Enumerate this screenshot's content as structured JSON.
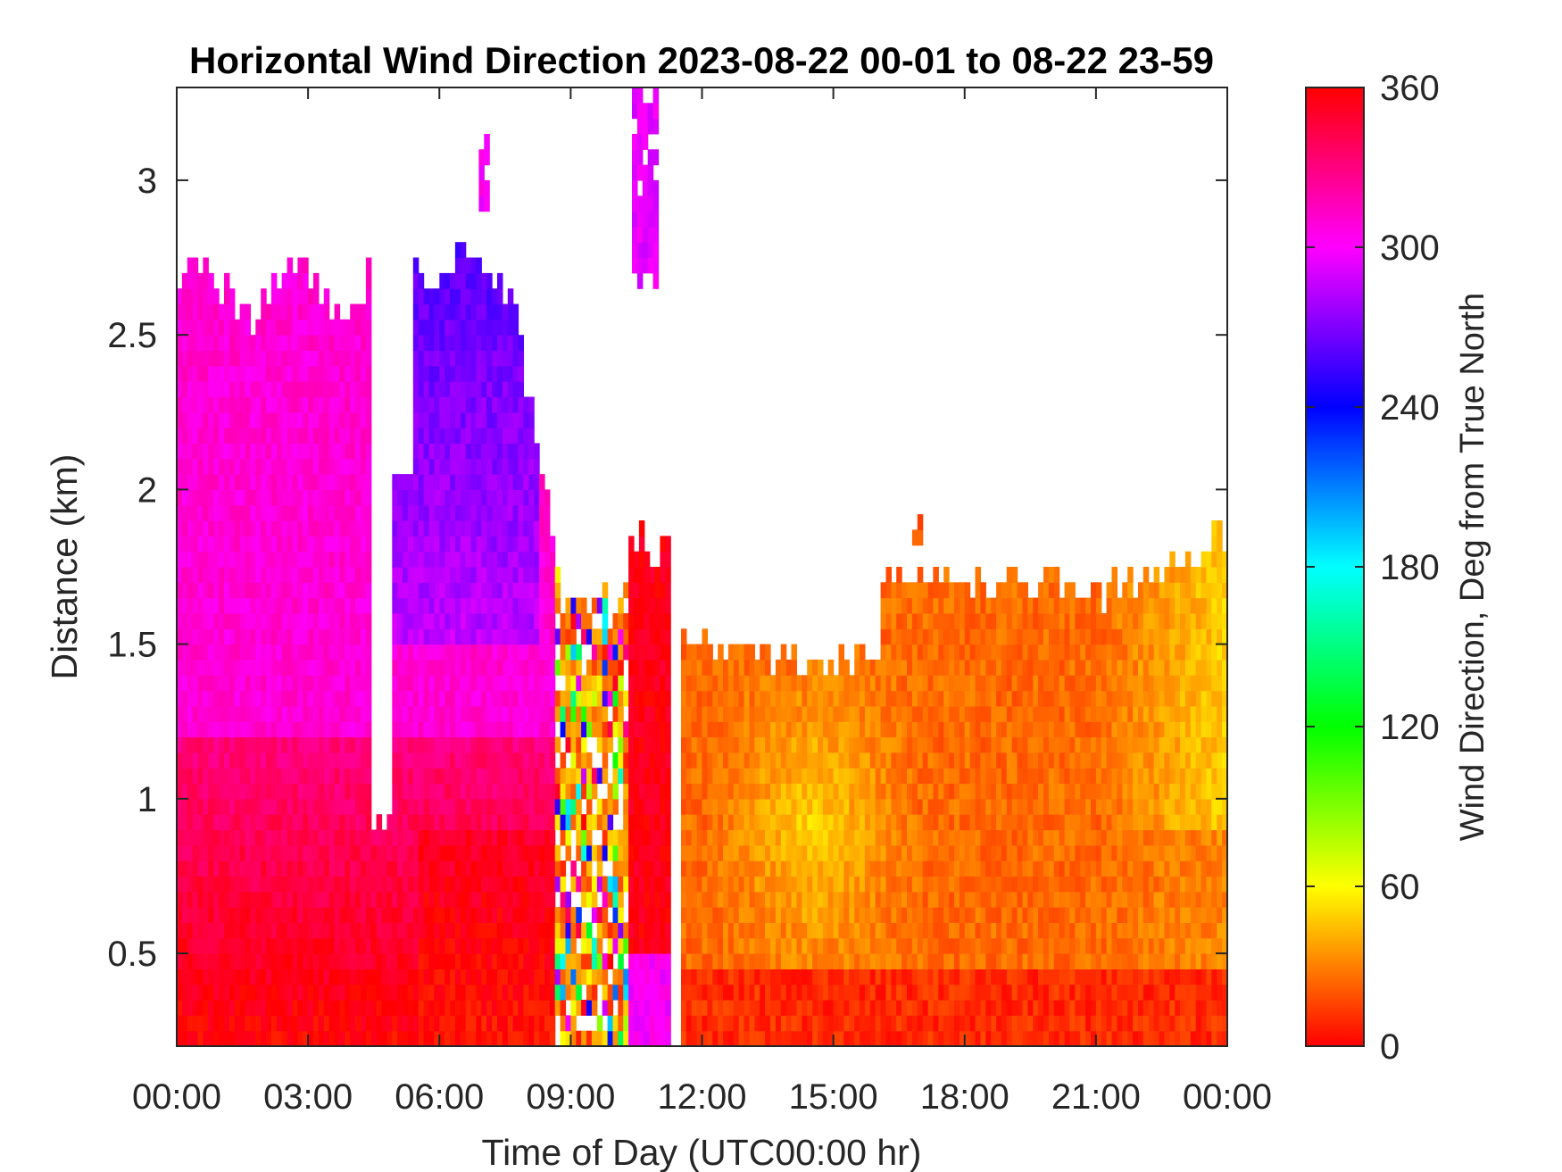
{
  "chart_data": {
    "type": "heatmap",
    "title": "Horizontal Wind Direction 2023-08-22 00-01 to 08-22 23-59",
    "xlabel": "Time of Day (UTC00:00 hr)",
    "ylabel": "Distance (km)",
    "xlim": [
      0,
      24
    ],
    "ylim": [
      0.2,
      3.3
    ],
    "x_ticks": [
      0,
      3,
      6,
      9,
      12,
      15,
      18,
      21,
      24
    ],
    "x_tick_labels": [
      "00:00",
      "03:00",
      "06:00",
      "09:00",
      "12:00",
      "15:00",
      "18:00",
      "21:00",
      "00:00"
    ],
    "y_ticks": [
      0.5,
      1,
      1.5,
      2,
      2.5,
      3
    ],
    "y_tick_labels": [
      "0.5",
      "1",
      "1.5",
      "2",
      "2.5",
      "3"
    ],
    "colorbar": {
      "label": "Wind Direction, Deg from True North",
      "range": [
        0,
        360
      ],
      "ticks": [
        0,
        60,
        120,
        180,
        240,
        300,
        360
      ],
      "tick_labels": [
        "0",
        "60",
        "120",
        "180",
        "240",
        "300",
        "360"
      ],
      "colormap": "hsv"
    },
    "regions": [
      {
        "t": [
          0.0,
          4.4
        ],
        "top_km": 2.65,
        "dir_deg": 310
      },
      {
        "t": [
          4.4,
          4.85
        ],
        "top_km": 0.9,
        "dir_deg": 340
      },
      {
        "t": [
          4.85,
          5.3
        ],
        "top_km": 2.05,
        "dir_deg": 290
      },
      {
        "t": [
          5.3,
          8.6
        ],
        "top_km": 2.7,
        "dir_deg": 285
      },
      {
        "t": [
          8.6,
          10.3
        ],
        "top_km": 1.65,
        "dir_deg": "mixed"
      },
      {
        "t": [
          10.3,
          11.2
        ],
        "top_km": 1.8,
        "dir_deg": 355
      },
      {
        "t": [
          11.4,
          14.0
        ],
        "top_km": 1.5,
        "dir_deg": 25
      },
      {
        "t": [
          14.0,
          16.0
        ],
        "top_km": 1.45,
        "dir_deg": 45
      },
      {
        "t": [
          16.0,
          21.0
        ],
        "top_km": 1.7,
        "dir_deg": 30
      },
      {
        "t": [
          21.0,
          24.0
        ],
        "top_km": 1.8,
        "dir_deg": 50
      }
    ]
  }
}
